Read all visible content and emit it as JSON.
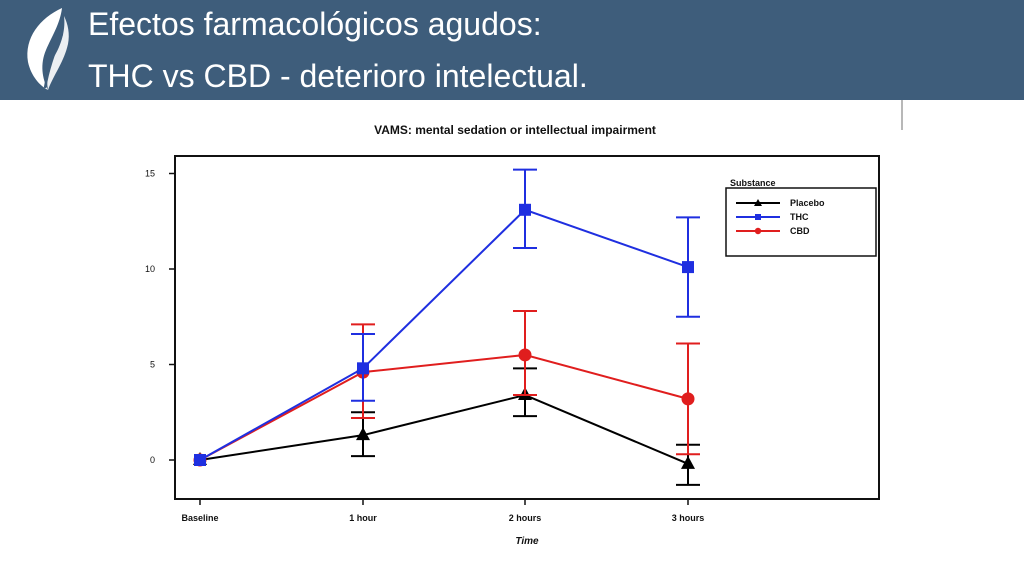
{
  "slide": {
    "title_line1": "Efectos farmacológicos agudos:",
    "title_line2": "THC vs CBD - deterioro intelectual.",
    "banner_color": "#3e5d7b"
  },
  "chart_data": {
    "type": "line",
    "title": "VAMS: mental sedation or intellectual impairment",
    "xlabel": "Time",
    "ylabel": "",
    "categories": [
      "Baseline",
      "1 hour",
      "2 hours",
      "3 hours"
    ],
    "ylim": [
      -2,
      16
    ],
    "yticks": [
      0,
      5,
      10,
      15
    ],
    "grid": false,
    "legend_title": "Substance",
    "legend_position": "top-right",
    "series": [
      {
        "name": "Placebo",
        "color": "#000000",
        "marker": "triangle",
        "values": [
          0,
          1.3,
          3.4,
          -0.2
        ],
        "err_low": [
          0,
          0.2,
          2.3,
          -1.3
        ],
        "err_high": [
          0,
          2.5,
          4.8,
          0.8
        ]
      },
      {
        "name": "THC",
        "color": "#1f2fe0",
        "marker": "square",
        "values": [
          0,
          4.8,
          13.1,
          10.1
        ],
        "err_low": [
          0,
          3.1,
          11.1,
          7.5
        ],
        "err_high": [
          0,
          6.6,
          15.2,
          12.7
        ]
      },
      {
        "name": "CBD",
        "color": "#e01e1e",
        "marker": "circle",
        "values": [
          0,
          4.6,
          5.5,
          3.2
        ],
        "err_low": [
          0,
          2.2,
          3.4,
          0.3
        ],
        "err_high": [
          0,
          7.1,
          7.8,
          6.1
        ]
      }
    ]
  }
}
